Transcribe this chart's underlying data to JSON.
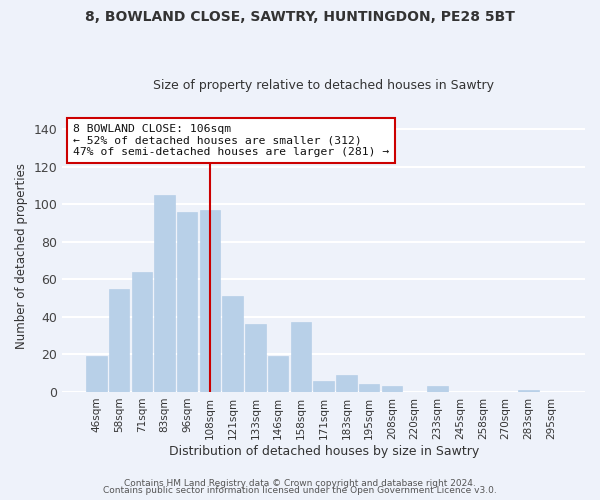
{
  "title": "8, BOWLAND CLOSE, SAWTRY, HUNTINGDON, PE28 5BT",
  "subtitle": "Size of property relative to detached houses in Sawtry",
  "xlabel": "Distribution of detached houses by size in Sawtry",
  "ylabel": "Number of detached properties",
  "bar_color": "#b8d0e8",
  "background_color": "#eef2fa",
  "grid_color": "#ffffff",
  "categories": [
    "46sqm",
    "58sqm",
    "71sqm",
    "83sqm",
    "96sqm",
    "108sqm",
    "121sqm",
    "133sqm",
    "146sqm",
    "158sqm",
    "171sqm",
    "183sqm",
    "195sqm",
    "208sqm",
    "220sqm",
    "233sqm",
    "245sqm",
    "258sqm",
    "270sqm",
    "283sqm",
    "295sqm"
  ],
  "values": [
    19,
    55,
    64,
    105,
    96,
    97,
    51,
    36,
    19,
    37,
    6,
    9,
    4,
    3,
    0,
    3,
    0,
    0,
    0,
    1,
    0
  ],
  "ylim": [
    0,
    145
  ],
  "yticks": [
    0,
    20,
    40,
    60,
    80,
    100,
    120,
    140
  ],
  "marker_idx": 5,
  "marker_label": "8 BOWLAND CLOSE: 106sqm",
  "annotation_line1": "← 52% of detached houses are smaller (312)",
  "annotation_line2": "47% of semi-detached houses are larger (281) →",
  "annotation_box_color": "#ffffff",
  "annotation_box_edge": "#cc0000",
  "marker_line_color": "#cc0000",
  "footer1": "Contains HM Land Registry data © Crown copyright and database right 2024.",
  "footer2": "Contains public sector information licensed under the Open Government Licence v3.0."
}
